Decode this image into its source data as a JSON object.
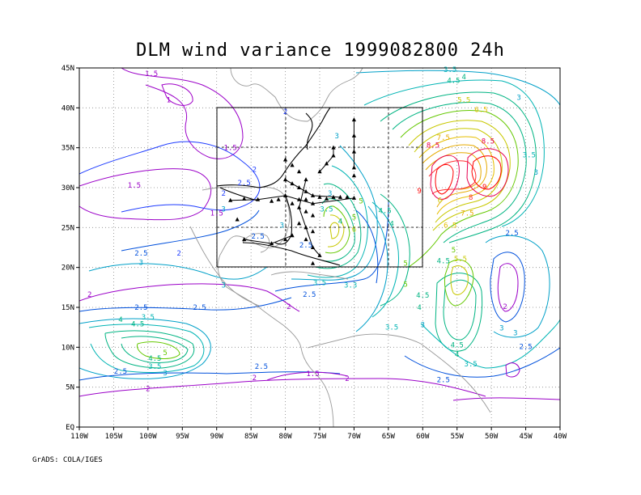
{
  "title": "DLM wind variance 1999082800 24h",
  "credit": "GrADS: COLA/IGES",
  "axes": {
    "x_ticks": [
      "110W",
      "105W",
      "100W",
      "95W",
      "90W",
      "85W",
      "80W",
      "75W",
      "70W",
      "65W",
      "60W",
      "55W",
      "50W",
      "45W",
      "40W"
    ],
    "y_ticks": [
      "EQ",
      "5N",
      "10N",
      "15N",
      "20N",
      "25N",
      "30N",
      "35N",
      "40N",
      "45N"
    ],
    "lon_range": [
      -110,
      -40
    ],
    "lat_range": [
      0,
      45
    ]
  },
  "inner_box": {
    "lon": [
      -90,
      -60
    ],
    "lat": [
      20,
      40
    ]
  },
  "contour_labels": [
    {
      "text": "1.5",
      "lon": -99.5,
      "lat": 44.0,
      "color": "#9b00c8"
    },
    {
      "text": "1",
      "lon": -97,
      "lat": 40.7,
      "color": "#a000c8"
    },
    {
      "text": "1.5",
      "lon": -102,
      "lat": 30.0,
      "color": "#9b00c8"
    },
    {
      "text": "1.5",
      "lon": -88,
      "lat": 34.7,
      "color": "#9b00c8"
    },
    {
      "text": "1.5",
      "lon": -90,
      "lat": 26.5,
      "color": "#9b00c8"
    },
    {
      "text": "2",
      "lon": -84.5,
      "lat": 32.0,
      "color": "#1e3cff"
    },
    {
      "text": "2.5",
      "lon": -86,
      "lat": 30.3,
      "color": "#1e3cff"
    },
    {
      "text": "2",
      "lon": -89,
      "lat": 29.0,
      "color": "#1e3cff"
    },
    {
      "text": "2.5",
      "lon": -84,
      "lat": 23.6,
      "color": "#0050dc"
    },
    {
      "text": "2",
      "lon": -95.5,
      "lat": 21.5,
      "color": "#1e3cff"
    },
    {
      "text": "2.5",
      "lon": -101,
      "lat": 21.5,
      "color": "#0050dc"
    },
    {
      "text": "3",
      "lon": -101,
      "lat": 20.3,
      "color": "#00a0c8"
    },
    {
      "text": "3",
      "lon": -89,
      "lat": 17.5,
      "color": "#00a0c8"
    },
    {
      "text": "2",
      "lon": -108.5,
      "lat": 16.3,
      "color": "#9b00c8"
    },
    {
      "text": "2.5",
      "lon": -101,
      "lat": 14.7,
      "color": "#0050dc"
    },
    {
      "text": "2.5",
      "lon": -92.5,
      "lat": 14.7,
      "color": "#0050dc"
    },
    {
      "text": "3.5",
      "lon": -100,
      "lat": 13.5,
      "color": "#00b4b4"
    },
    {
      "text": "4",
      "lon": -104,
      "lat": 13.2,
      "color": "#00b482"
    },
    {
      "text": "4.5",
      "lon": -101.5,
      "lat": 12.6,
      "color": "#00b482"
    },
    {
      "text": "5",
      "lon": -97.5,
      "lat": 9.0,
      "color": "#64c800"
    },
    {
      "text": "4.5",
      "lon": -99,
      "lat": 8.3,
      "color": "#00b482"
    },
    {
      "text": "3.5",
      "lon": -99,
      "lat": 7.3,
      "color": "#00b4b4"
    },
    {
      "text": "3",
      "lon": -97.5,
      "lat": 6.5,
      "color": "#00a0c8"
    },
    {
      "text": "2.5",
      "lon": -104,
      "lat": 6.7,
      "color": "#0050dc"
    },
    {
      "text": "2",
      "lon": -100,
      "lat": 4.5,
      "color": "#9b00c8"
    },
    {
      "text": "2.5",
      "lon": -83.5,
      "lat": 7.3,
      "color": "#0050dc"
    },
    {
      "text": "2",
      "lon": -84.5,
      "lat": 5.9,
      "color": "#9b00c8"
    },
    {
      "text": "1.5",
      "lon": -76,
      "lat": 6.4,
      "color": "#9b00c8"
    },
    {
      "text": "2",
      "lon": -71,
      "lat": 5.8,
      "color": "#9b00c8"
    },
    {
      "text": "2",
      "lon": -79.5,
      "lat": 14.8,
      "color": "#9b00c8"
    },
    {
      "text": "2.5",
      "lon": -76.5,
      "lat": 16.3,
      "color": "#0050dc"
    },
    {
      "text": "3.5",
      "lon": -75,
      "lat": 17.8,
      "color": "#00b4b4"
    },
    {
      "text": "3.3",
      "lon": -70.5,
      "lat": 17.5,
      "color": "#00b4b4"
    },
    {
      "text": "2.5",
      "lon": -77,
      "lat": 22.5,
      "color": "#0050dc"
    },
    {
      "text": "3",
      "lon": -80.5,
      "lat": 25.0,
      "color": "#00a0c8"
    },
    {
      "text": "3",
      "lon": -72.5,
      "lat": 36.2,
      "color": "#00a0c8"
    },
    {
      "text": "3.5",
      "lon": -74,
      "lat": 27.0,
      "color": "#00b4b4"
    },
    {
      "text": "4",
      "lon": -72,
      "lat": 25.5,
      "color": "#00b482"
    },
    {
      "text": "5",
      "lon": -70,
      "lat": 26.0,
      "color": "#64c800"
    },
    {
      "text": "6",
      "lon": -70,
      "lat": 24.5,
      "color": "#c8c800"
    },
    {
      "text": "5",
      "lon": -69,
      "lat": 28.0,
      "color": "#64c800"
    },
    {
      "text": "4.5",
      "lon": -65.5,
      "lat": 26.8,
      "color": "#00b482"
    },
    {
      "text": "4",
      "lon": -64.5,
      "lat": 25.2,
      "color": "#00b482"
    },
    {
      "text": "5",
      "lon": -62.5,
      "lat": 20.2,
      "color": "#64c800"
    },
    {
      "text": "5",
      "lon": -62.5,
      "lat": 17.6,
      "color": "#64c800"
    },
    {
      "text": "4.5",
      "lon": -60,
      "lat": 16.2,
      "color": "#00b482"
    },
    {
      "text": "4",
      "lon": -60.5,
      "lat": 14.7,
      "color": "#00b482"
    },
    {
      "text": "3.5",
      "lon": -64.5,
      "lat": 12.2,
      "color": "#00b4b4"
    },
    {
      "text": "3",
      "lon": -60,
      "lat": 12.5,
      "color": "#00a0c8"
    },
    {
      "text": "4.5",
      "lon": -55,
      "lat": 10.0,
      "color": "#00b482"
    },
    {
      "text": "4",
      "lon": -55,
      "lat": 8.8,
      "color": "#00b482"
    },
    {
      "text": "3.5",
      "lon": -53,
      "lat": 7.6,
      "color": "#00b4b4"
    },
    {
      "text": "2.5",
      "lon": -57,
      "lat": 5.6,
      "color": "#0050dc"
    },
    {
      "text": "2.5",
      "lon": -45,
      "lat": 9.8,
      "color": "#0050dc"
    },
    {
      "text": "3",
      "lon": -46.5,
      "lat": 11.5,
      "color": "#00a0c8"
    },
    {
      "text": "3",
      "lon": -48.5,
      "lat": 12.1,
      "color": "#00a0c8"
    },
    {
      "text": "2",
      "lon": -48,
      "lat": 14.8,
      "color": "#9b00c8"
    },
    {
      "text": "2.5",
      "lon": -47,
      "lat": 24.0,
      "color": "#0050dc"
    },
    {
      "text": "4.5",
      "lon": -57,
      "lat": 20.5,
      "color": "#00b482"
    },
    {
      "text": "5",
      "lon": -55.5,
      "lat": 21.9,
      "color": "#64c800"
    },
    {
      "text": "5.5",
      "lon": -54.5,
      "lat": 20.8,
      "color": "#c8c800"
    },
    {
      "text": "6",
      "lon": -57.5,
      "lat": 28.1,
      "color": "#c8c800"
    },
    {
      "text": "6.5",
      "lon": -56,
      "lat": 25.0,
      "color": "#e6be00"
    },
    {
      "text": "7.5",
      "lon": -53.5,
      "lat": 26.5,
      "color": "#e6aa00"
    },
    {
      "text": "8",
      "lon": -53,
      "lat": 28.5,
      "color": "#ff3232"
    },
    {
      "text": "9",
      "lon": -60.5,
      "lat": 29.3,
      "color": "#ff0000"
    },
    {
      "text": "9",
      "lon": -51,
      "lat": 29.8,
      "color": "#ff0000"
    },
    {
      "text": "8.5",
      "lon": -58.5,
      "lat": 35.0,
      "color": "#e60050"
    },
    {
      "text": "8.5",
      "lon": -50.5,
      "lat": 35.5,
      "color": "#e60050"
    },
    {
      "text": "7.5",
      "lon": -57,
      "lat": 36.0,
      "color": "#e6aa00"
    },
    {
      "text": "6.5",
      "lon": -51.5,
      "lat": 39.5,
      "color": "#e6be00"
    },
    {
      "text": "5.5",
      "lon": -54,
      "lat": 40.7,
      "color": "#c8c800"
    },
    {
      "text": "4.5",
      "lon": -55.5,
      "lat": 43.1,
      "color": "#00b482"
    },
    {
      "text": "3.5",
      "lon": -56,
      "lat": 44.5,
      "color": "#00b4b4"
    },
    {
      "text": "4",
      "lon": -54,
      "lat": 43.6,
      "color": "#00b482"
    },
    {
      "text": "3",
      "lon": -46,
      "lat": 41.0,
      "color": "#00a0c8"
    },
    {
      "text": "3.5",
      "lon": -44.5,
      "lat": 33.8,
      "color": "#00b4b4"
    },
    {
      "text": "3",
      "lon": -43.5,
      "lat": 31.6,
      "color": "#00a0c8"
    },
    {
      "text": "3",
      "lon": -89,
      "lat": 27.0,
      "color": "#00a0c8"
    },
    {
      "text": "2",
      "lon": -80,
      "lat": 39.2,
      "color": "#1e3cff"
    },
    {
      "text": "3",
      "lon": -73.5,
      "lat": 29.0,
      "color": "#00a0c8"
    }
  ]
}
